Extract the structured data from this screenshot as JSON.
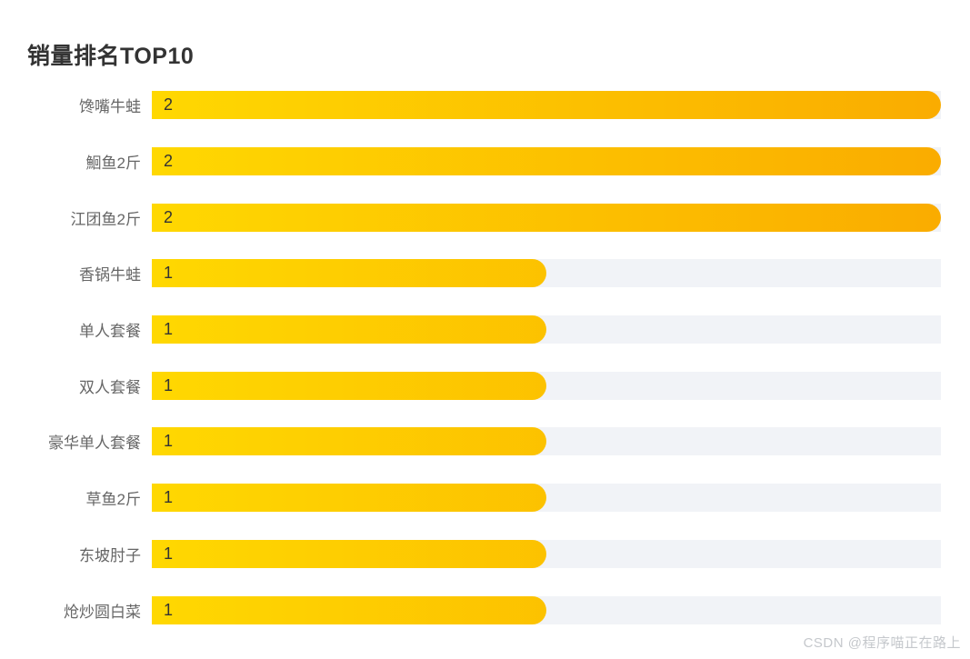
{
  "header": {
    "title": "销量排名TOP10"
  },
  "watermark": {
    "text": "CSDN @程序喵正在路上"
  },
  "colors": {
    "bar_gradient_start": "#FFD801",
    "bar_gradient_end": "#FAAC00",
    "track": "#F1F3F7",
    "title_text": "#333333",
    "label_text": "#666666",
    "value_text": "#333333",
    "watermark_text": "#C5C8CC",
    "background": "#FFFFFF"
  },
  "chart_data": {
    "type": "bar",
    "orientation": "horizontal",
    "title": "销量排名TOP10",
    "categories": [
      "馋嘴牛蛙",
      "鮰鱼2斤",
      "江团鱼2斤",
      "香锅牛蛙",
      "单人套餐",
      "双人套餐",
      "豪华单人套餐",
      "草鱼2斤",
      "东坡肘子",
      "炝炒圆白菜"
    ],
    "values": [
      2,
      2,
      2,
      1,
      1,
      1,
      1,
      1,
      1,
      1
    ],
    "xlabel": "",
    "ylabel": "",
    "xlim": [
      0,
      2
    ],
    "grid": false,
    "legend": false,
    "value_labels": "inside-left",
    "bar_style": "pill-right-gradient"
  }
}
